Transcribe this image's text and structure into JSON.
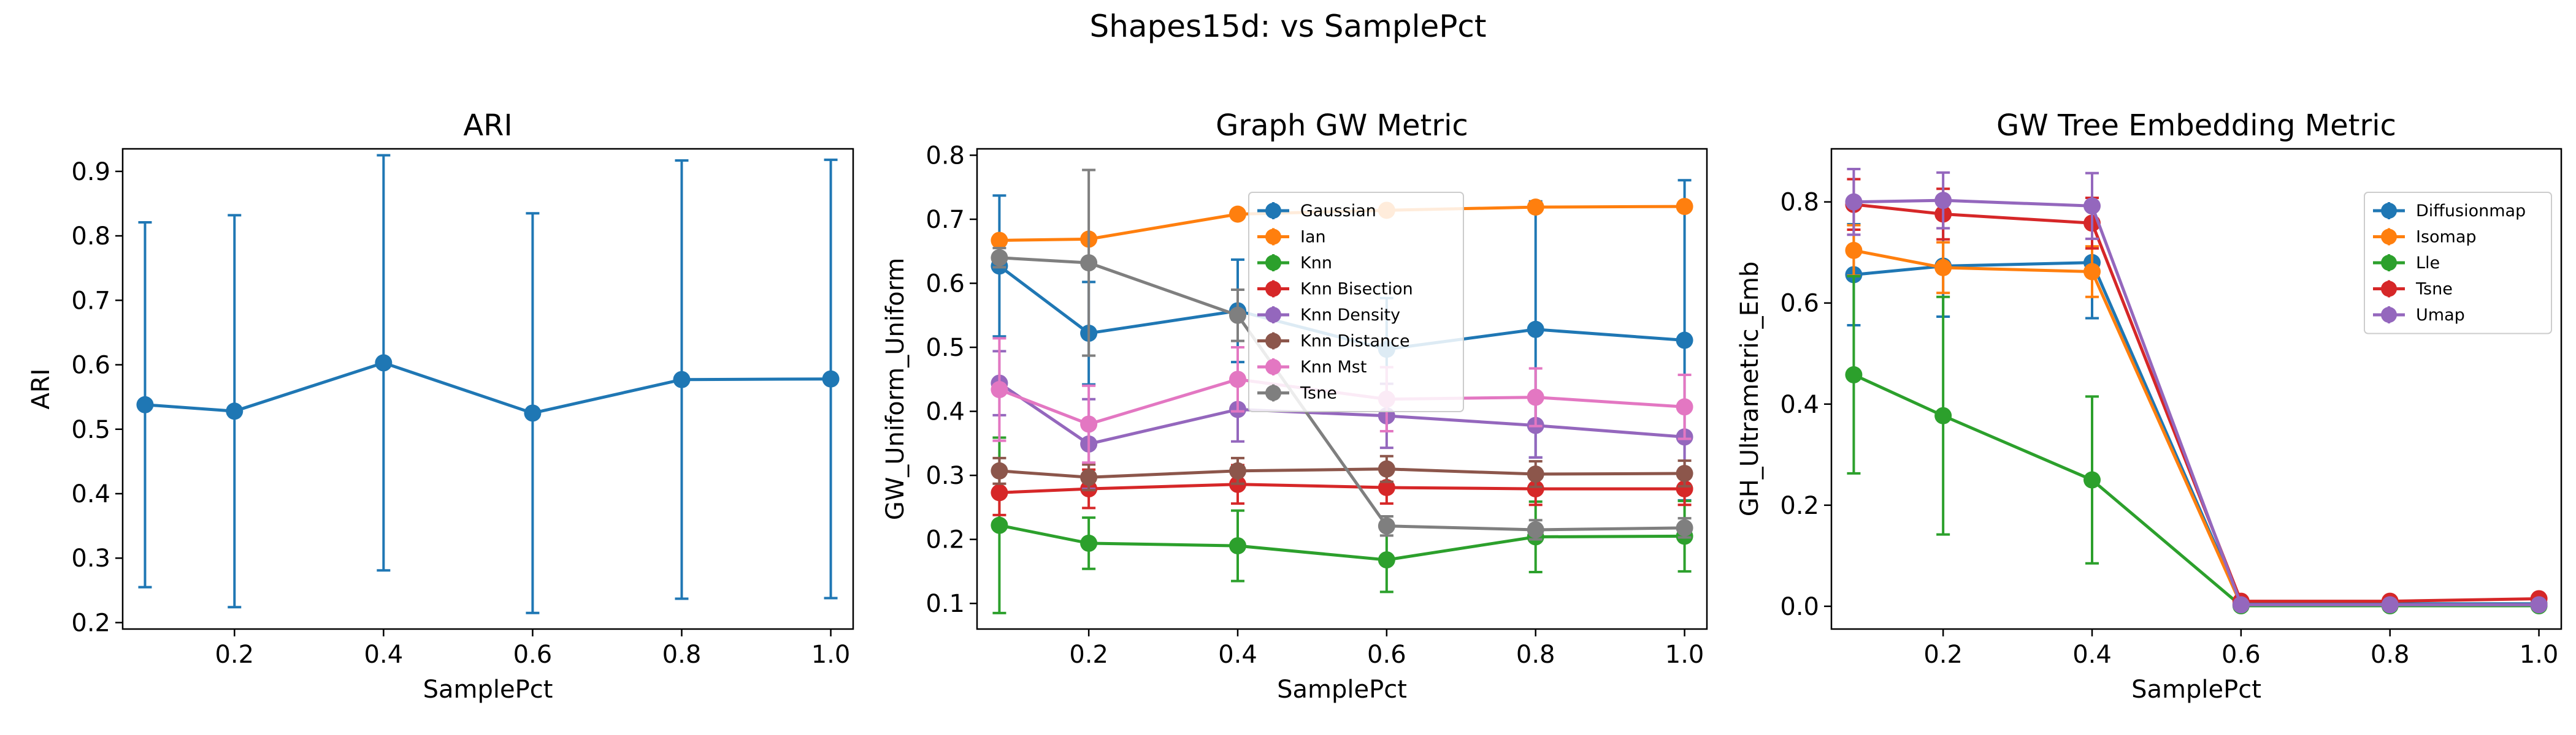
{
  "figure": {
    "suptitle": "Shapes15d: vs SamplePct"
  },
  "chart_data": [
    {
      "type": "line",
      "title": "ARI",
      "xlabel": "SamplePct",
      "ylabel": "ARI",
      "xlim": [
        0.05,
        1.03
      ],
      "ylim": [
        0.19,
        0.935
      ],
      "xticks": [
        0.2,
        0.4,
        0.6,
        0.8,
        1.0
      ],
      "xtick_labels": [
        "0.2",
        "0.4",
        "0.6",
        "0.8",
        "1.0"
      ],
      "yticks": [
        0.2,
        0.3,
        0.4,
        0.5,
        0.6,
        0.7,
        0.8,
        0.9
      ],
      "ytick_labels": [
        "0.2",
        "0.3",
        "0.4",
        "0.5",
        "0.6",
        "0.7",
        "0.8",
        "0.9"
      ],
      "grid": false,
      "legend": null,
      "x": [
        0.08,
        0.2,
        0.4,
        0.6,
        0.8,
        1.0
      ],
      "series": [
        {
          "color": "#1f77b4",
          "values": [
            0.538,
            0.528,
            0.603,
            0.525,
            0.577,
            0.578
          ],
          "errors": [
            0.283,
            0.304,
            0.322,
            0.31,
            0.34,
            0.34
          ]
        }
      ]
    },
    {
      "type": "line",
      "title": "Graph GW Metric",
      "xlabel": "SamplePct",
      "ylabel": "GW_Uniform_Uniform",
      "xlim": [
        0.05,
        1.03
      ],
      "ylim": [
        0.06,
        0.81
      ],
      "xticks": [
        0.2,
        0.4,
        0.6,
        0.8,
        1.0
      ],
      "xtick_labels": [
        "0.2",
        "0.4",
        "0.6",
        "0.8",
        "1.0"
      ],
      "yticks": [
        0.1,
        0.2,
        0.3,
        0.4,
        0.5,
        0.6,
        0.7,
        0.8
      ],
      "ytick_labels": [
        "0.1",
        "0.2",
        "0.3",
        "0.4",
        "0.5",
        "0.6",
        "0.7",
        "0.8"
      ],
      "grid": false,
      "legend": "upper-center",
      "x": [
        0.08,
        0.2,
        0.4,
        0.6,
        0.8,
        1.0
      ],
      "series": [
        {
          "name": "Gaussian",
          "color": "#1f77b4",
          "values": [
            0.627,
            0.522,
            0.557,
            0.497,
            0.528,
            0.511
          ],
          "errors": [
            0.11,
            0.08,
            0.08,
            0.08,
            0.2,
            0.25
          ]
        },
        {
          "name": "Ian",
          "color": "#ff7f0e",
          "values": [
            0.667,
            0.669,
            0.708,
            0.714,
            0.719,
            0.72
          ],
          "errors": [
            0.005,
            0.005,
            0.005,
            0.005,
            0.005,
            0.005
          ]
        },
        {
          "name": "Knn",
          "color": "#2ca02c",
          "values": [
            0.222,
            0.194,
            0.19,
            0.168,
            0.204,
            0.205
          ],
          "errors": [
            0.137,
            0.04,
            0.055,
            0.05,
            0.055,
            0.055
          ]
        },
        {
          "name": "Knn Bisection",
          "color": "#d62728",
          "values": [
            0.273,
            0.279,
            0.286,
            0.281,
            0.279,
            0.279
          ],
          "errors": [
            0.035,
            0.03,
            0.03,
            0.025,
            0.025,
            0.025
          ]
        },
        {
          "name": "Knn Density",
          "color": "#9467bd",
          "values": [
            0.444,
            0.349,
            0.403,
            0.393,
            0.378,
            0.36
          ],
          "errors": [
            0.05,
            0.07,
            0.05,
            0.05,
            0.05,
            0.05
          ]
        },
        {
          "name": "Knn Distance",
          "color": "#8c564b",
          "values": [
            0.307,
            0.297,
            0.307,
            0.31,
            0.302,
            0.303
          ],
          "errors": [
            0.02,
            0.02,
            0.02,
            0.02,
            0.02,
            0.02
          ]
        },
        {
          "name": "Knn Mst",
          "color": "#e377c2",
          "values": [
            0.434,
            0.38,
            0.45,
            0.419,
            0.422,
            0.407
          ],
          "errors": [
            0.08,
            0.06,
            0.05,
            0.05,
            0.045,
            0.05
          ]
        },
        {
          "name": "Tsne",
          "color": "#7f7f7f",
          "values": [
            0.64,
            0.632,
            0.55,
            0.221,
            0.215,
            0.218
          ],
          "errors": [
            0.015,
            0.145,
            0.04,
            0.015,
            0.015,
            0.015
          ]
        }
      ]
    },
    {
      "type": "line",
      "title": "GW Tree Embedding Metric",
      "xlabel": "SamplePct",
      "ylabel": "GH_Ultrametric_Emb",
      "xlim": [
        0.05,
        1.03
      ],
      "ylim": [
        -0.045,
        0.905
      ],
      "xticks": [
        0.2,
        0.4,
        0.6,
        0.8,
        1.0
      ],
      "xtick_labels": [
        "0.2",
        "0.4",
        "0.6",
        "0.8",
        "1.0"
      ],
      "yticks": [
        0.0,
        0.2,
        0.4,
        0.6,
        0.8
      ],
      "ytick_labels": [
        "0.0",
        "0.2",
        "0.4",
        "0.6",
        "0.8"
      ],
      "grid": false,
      "legend": "upper-right",
      "x": [
        0.08,
        0.2,
        0.4,
        0.6,
        0.8,
        1.0
      ],
      "series": [
        {
          "name": "Diffusionmap",
          "color": "#1f77b4",
          "values": [
            0.656,
            0.673,
            0.68,
            0.005,
            0.005,
            0.005
          ],
          "errors": [
            0.1,
            0.1,
            0.11,
            0.003,
            0.003,
            0.003
          ]
        },
        {
          "name": "Isomap",
          "color": "#ff7f0e",
          "values": [
            0.704,
            0.67,
            0.662,
            0.003,
            0.003,
            0.003
          ],
          "errors": [
            0.05,
            0.05,
            0.05,
            0.003,
            0.003,
            0.003
          ]
        },
        {
          "name": "Lle",
          "color": "#2ca02c",
          "values": [
            0.458,
            0.377,
            0.25,
            0.001,
            0.001,
            0.001
          ],
          "errors": [
            0.195,
            0.235,
            0.165,
            0.001,
            0.001,
            0.001
          ]
        },
        {
          "name": "Tsne",
          "color": "#d62728",
          "values": [
            0.795,
            0.776,
            0.758,
            0.01,
            0.01,
            0.015
          ],
          "errors": [
            0.05,
            0.05,
            0.05,
            0.003,
            0.003,
            0.003
          ]
        },
        {
          "name": "Umap",
          "color": "#9467bd",
          "values": [
            0.8,
            0.803,
            0.792,
            0.003,
            0.003,
            0.003
          ],
          "errors": [
            0.065,
            0.055,
            0.065,
            0.003,
            0.003,
            0.003
          ]
        }
      ]
    }
  ]
}
